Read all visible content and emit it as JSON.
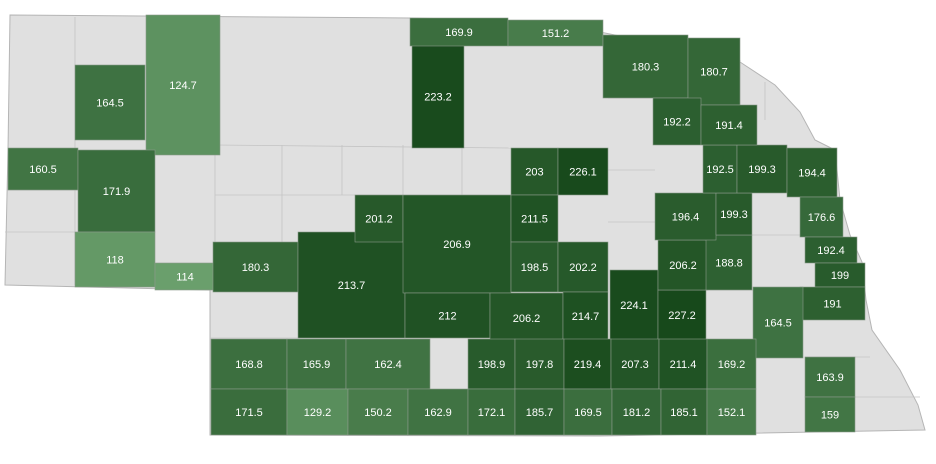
{
  "map": {
    "region": "Nebraska counties",
    "colors": {
      "low": "#6a9f6c",
      "high": "#17491b",
      "no_data": "#e0e0e0",
      "border": "#b5b5b5"
    },
    "scale_min": 114,
    "scale_max": 227.2,
    "counties": [
      {
        "value": "124.7"
      },
      {
        "value": "164.5"
      },
      {
        "value": "160.5"
      },
      {
        "value": "171.9"
      },
      {
        "value": "118"
      },
      {
        "value": "114"
      },
      {
        "value": "180.3"
      },
      {
        "value": "213.7"
      },
      {
        "value": "201.2"
      },
      {
        "value": "206.9"
      },
      {
        "value": "223.2"
      },
      {
        "value": "169.9"
      },
      {
        "value": "151.2"
      },
      {
        "value": "212"
      },
      {
        "value": "206.2"
      },
      {
        "value": "203"
      },
      {
        "value": "226.1"
      },
      {
        "value": "211.5"
      },
      {
        "value": "198.5"
      },
      {
        "value": "202.2"
      },
      {
        "value": "214.7"
      },
      {
        "value": "224.1"
      },
      {
        "value": "227.2"
      },
      {
        "value": "206.2"
      },
      {
        "value": "188.8"
      },
      {
        "value": "196.4"
      },
      {
        "value": "199.3"
      },
      {
        "value": "192.5"
      },
      {
        "value": "199.3"
      },
      {
        "value": "194.4"
      },
      {
        "value": "176.6"
      },
      {
        "value": "192.4"
      },
      {
        "value": "199"
      },
      {
        "value": "191"
      },
      {
        "value": "164.5"
      },
      {
        "value": "180.3"
      },
      {
        "value": "180.7"
      },
      {
        "value": "192.2"
      },
      {
        "value": "191.4"
      },
      {
        "value": "163.9"
      },
      {
        "value": "159"
      },
      {
        "value": "168.8"
      },
      {
        "value": "165.9"
      },
      {
        "value": "162.4"
      },
      {
        "value": "198.9"
      },
      {
        "value": "197.8"
      },
      {
        "value": "219.4"
      },
      {
        "value": "207.3"
      },
      {
        "value": "211.4"
      },
      {
        "value": "169.2"
      },
      {
        "value": "171.5"
      },
      {
        "value": "129.2"
      },
      {
        "value": "150.2"
      },
      {
        "value": "162.9"
      },
      {
        "value": "172.1"
      },
      {
        "value": "185.7"
      },
      {
        "value": "169.5"
      },
      {
        "value": "181.2"
      },
      {
        "value": "185.1"
      },
      {
        "value": "152.1"
      }
    ]
  }
}
